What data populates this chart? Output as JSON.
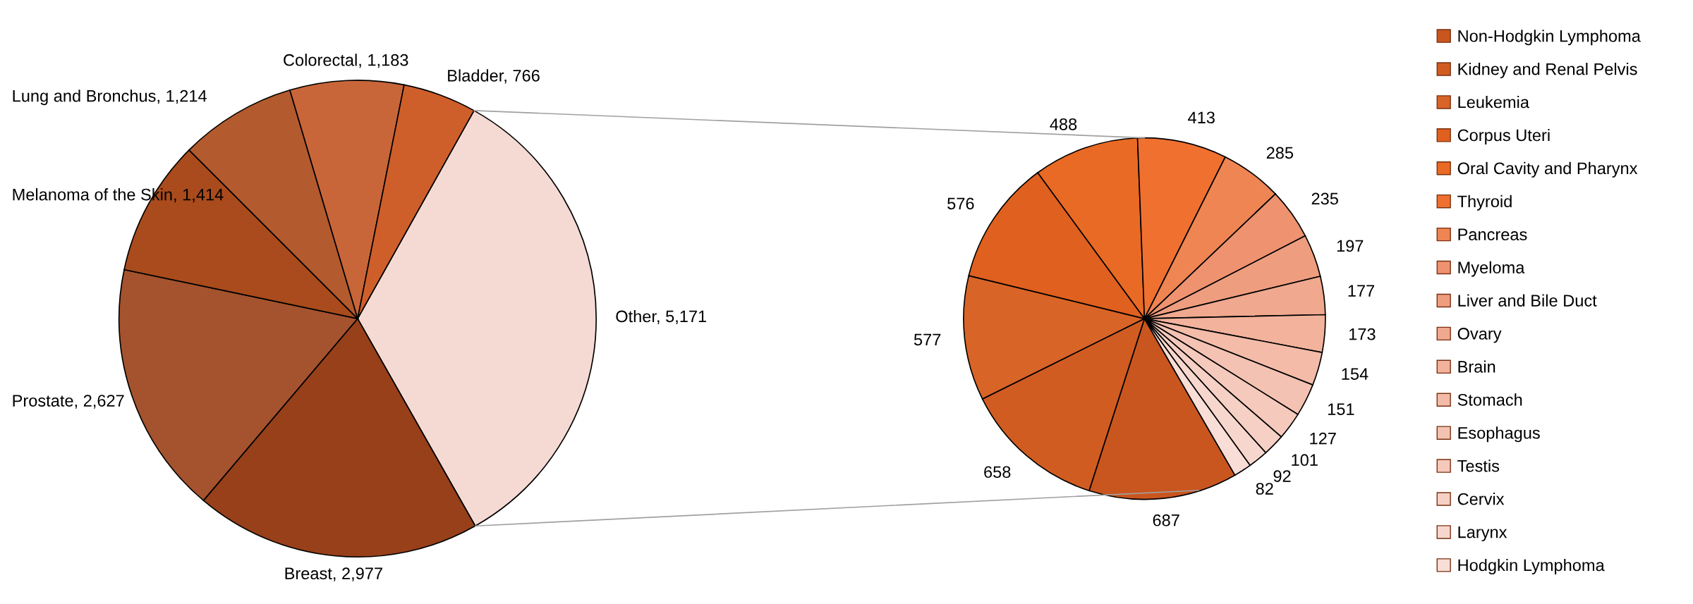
{
  "chart_data": [
    {
      "type": "pie",
      "categories": [
        "Other",
        "Breast",
        "Prostate",
        "Melanoma of the Skin",
        "Lung and Bronchus",
        "Colorectal",
        "Bladder"
      ],
      "values": [
        5171,
        2977,
        2627,
        1414,
        1214,
        1183,
        766
      ],
      "value_labels": [
        "5,171",
        "2,977",
        "2,627",
        "1,414",
        "1,214",
        "1,183",
        "766"
      ],
      "colors": [
        "#f5dad4",
        "#97401a",
        "#a4532e",
        "#a94b1c",
        "#b35a2e",
        "#c8663a",
        "#cf5f2a"
      ],
      "legend": false
    },
    {
      "type": "pie",
      "categories": [
        "Non-Hodgkin Lymphoma",
        "Kidney and Renal Pelvis",
        "Leukemia",
        "Corpus Uteri",
        "Oral Cavity and Pharynx",
        "Thyroid",
        "Pancreas",
        "Myeloma",
        "Liver and Bile Duct",
        "Ovary",
        "Brain",
        "Stomach",
        "Esophagus",
        "Testis",
        "Cervix",
        "Larynx",
        "Hodgkin Lymphoma"
      ],
      "values": [
        687,
        658,
        577,
        576,
        488,
        413,
        285,
        235,
        197,
        177,
        173,
        154,
        151,
        127,
        101,
        92,
        82
      ],
      "colors": [
        "#c9561f",
        "#d15c22",
        "#d96427",
        "#e0601f",
        "#e96a24",
        "#f07030",
        "#ee8552",
        "#ee9270",
        "#ef9d7f",
        "#f0a88e",
        "#f2b29c",
        "#f3bba8",
        "#f4c2b2",
        "#f5c9bb",
        "#f6d0c4",
        "#f7d7cd",
        "#f8ded6"
      ],
      "data_labels": true,
      "legend": "right"
    }
  ]
}
